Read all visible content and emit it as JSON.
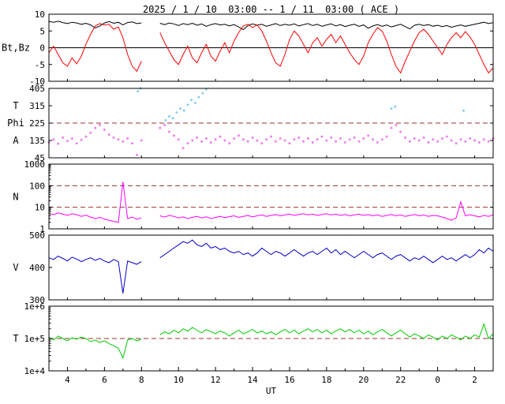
{
  "title": "2025 / 1 / 10  03:00 -- 1 / 11  03:00 ( ACE )",
  "chart_data": {
    "type": "line",
    "title": "2025 / 1 / 10  03:00 -- 1 / 11  03:00 ( ACE )",
    "source": "ACE",
    "x": {
      "label": "UT",
      "min": 3,
      "max": 27,
      "start": 3,
      "step": 0.25,
      "tick_values": [
        4,
        6,
        8,
        10,
        12,
        14,
        16,
        18,
        20,
        22,
        24,
        26
      ],
      "tick_labels": [
        "4",
        "6",
        "8",
        "10",
        "12",
        "14",
        "16",
        "18",
        "20",
        "22",
        "0",
        "2"
      ]
    },
    "panels": [
      {
        "id": "bt-bz",
        "scale": "linear",
        "ylim": [
          -10,
          10
        ],
        "yticks": [
          {
            "v": -10,
            "l": "-10"
          },
          {
            "v": -5,
            "l": "-5"
          },
          {
            "v": 0,
            "l": "0"
          },
          {
            "v": 5,
            "l": "5"
          },
          {
            "v": 10,
            "l": "10"
          }
        ],
        "ylabels": [
          {
            "text": "Bt,Bz",
            "at": 0
          }
        ],
        "ref_lines": [
          {
            "v": 0,
            "style": "solid",
            "color": "#000000"
          }
        ],
        "series": [
          {
            "name": "Bt",
            "type": "line",
            "color": "#000000",
            "values": [
              7.8,
              7.6,
              7.9,
              7.5,
              7.2,
              7.6,
              7.4,
              7.0,
              7.3,
              6.8,
              5.9,
              6.5,
              7.4,
              7.8,
              7.3,
              7.6,
              6.8,
              7.5,
              7.7,
              7.2,
              7.4,
              null,
              null,
              null,
              7.3,
              6.9,
              7.4,
              7.1,
              6.6,
              7.2,
              6.9,
              7.3,
              6.7,
              7.1,
              6.4,
              6.9,
              7.2,
              6.8,
              7.0,
              6.5,
              6.9,
              6.2,
              5.4,
              6.6,
              7.1,
              6.7,
              7.0,
              6.4,
              6.8,
              7.2,
              6.6,
              7.0,
              6.7,
              7.1,
              6.5,
              6.9,
              7.2,
              6.6,
              7.0,
              6.4,
              6.8,
              7.1,
              6.5,
              6.9,
              6.3,
              6.7,
              7.0,
              6.4,
              6.8,
              5.8,
              6.5,
              6.9,
              6.4,
              6.8,
              6.2,
              6.6,
              7.0,
              6.3,
              5.6,
              6.7,
              7.0,
              6.6,
              6.9,
              6.4,
              6.7,
              6.3,
              6.6,
              6.1,
              6.5,
              6.8,
              6.4,
              6.7,
              7.0,
              7.3,
              7.6,
              7.2,
              7.5
            ]
          },
          {
            "name": "Bz",
            "type": "line",
            "color": "#ff0000",
            "values": [
              -1.5,
              0.5,
              -2.0,
              -4.5,
              -5.5,
              -3.0,
              -4.8,
              -2.5,
              1.0,
              4.0,
              6.5,
              7.2,
              6.8,
              7.0,
              5.5,
              6.2,
              3.0,
              -2.0,
              -5.5,
              -7.0,
              -4.0,
              null,
              null,
              null,
              4.5,
              1.5,
              -1.0,
              -3.5,
              -5.0,
              -2.0,
              0.5,
              -3.0,
              -4.5,
              -1.5,
              1.0,
              -2.5,
              -4.0,
              -1.0,
              1.5,
              -1.5,
              2.0,
              4.5,
              6.5,
              7.0,
              6.0,
              6.8,
              5.0,
              2.0,
              -1.5,
              -4.5,
              -5.5,
              -2.0,
              2.5,
              5.0,
              3.5,
              1.0,
              -1.5,
              1.5,
              3.0,
              0.5,
              2.5,
              4.0,
              1.5,
              3.5,
              1.0,
              -1.5,
              -3.5,
              -5.0,
              -2.5,
              1.5,
              4.0,
              6.0,
              5.0,
              2.0,
              -2.0,
              -5.5,
              -7.5,
              -4.0,
              -1.0,
              2.0,
              4.5,
              5.5,
              4.0,
              2.0,
              0.0,
              -2.0,
              1.0,
              3.0,
              4.5,
              3.0,
              4.8,
              3.2,
              1.0,
              -2.0,
              -5.0,
              -7.5,
              -6.0
            ]
          }
        ]
      },
      {
        "id": "phi",
        "scale": "linear",
        "ylim": [
          45,
          405
        ],
        "yticks": [
          {
            "v": 45,
            "l": "45"
          },
          {
            "v": 135,
            "l": "135"
          },
          {
            "v": 225,
            "l": "225"
          },
          {
            "v": 315,
            "l": "315"
          },
          {
            "v": 405,
            "l": "405"
          }
        ],
        "ylabels": [
          {
            "text": "T",
            "at": 315
          },
          {
            "text": "Phi",
            "at": 225
          },
          {
            "text": "A",
            "at": 135
          }
        ],
        "ref_lines": [
          {
            "v": 225,
            "style": "dashed",
            "color": "#993333"
          }
        ],
        "series": [
          {
            "name": "Phi",
            "type": "scatter",
            "color": "#ee82ee",
            "values": [
              125,
              140,
              118,
              150,
              132,
              145,
              120,
              138,
              155,
              175,
              200,
              215,
              190,
              165,
              150,
              140,
              130,
              145,
              120,
              60,
              135,
              null,
              null,
              null,
              200,
              215,
              180,
              160,
              140,
              95,
              120,
              135,
              150,
              130,
              145,
              125,
              140,
              155,
              135,
              120,
              145,
              160,
              140,
              130,
              150,
              135,
              120,
              140,
              155,
              130,
              145,
              135,
              120,
              140,
              150,
              130,
              145,
              125,
              140,
              155,
              135,
              150,
              130,
              145,
              125,
              140,
              150,
              130,
              145,
              160,
              140,
              125,
              140,
              155,
              200,
              215,
              180,
              150,
              130,
              145,
              135,
              150,
              125,
              140,
              130,
              145,
              155,
              135,
              120,
              140,
              130,
              145,
              135,
              125,
              140,
              130,
              145
            ]
          },
          {
            "name": "Phi-hot",
            "type": "scatter",
            "color": "#87ceeb",
            "points": [
              [
                7.8,
                390
              ],
              [
                7.95,
                405
              ],
              [
                9.3,
                240
              ],
              [
                9.5,
                260
              ],
              [
                9.7,
                250
              ],
              [
                9.9,
                280
              ],
              [
                10.1,
                300
              ],
              [
                10.3,
                290
              ],
              [
                10.5,
                320
              ],
              [
                10.7,
                345
              ],
              [
                10.9,
                330
              ],
              [
                11.1,
                360
              ],
              [
                11.3,
                380
              ],
              [
                11.5,
                400
              ],
              [
                21.5,
                300
              ],
              [
                21.7,
                310
              ],
              [
                25.4,
                290
              ]
            ]
          }
        ]
      },
      {
        "id": "n",
        "scale": "log",
        "ylim": [
          1,
          1000
        ],
        "yticks": [
          {
            "v": 1,
            "l": "1"
          },
          {
            "v": 10,
            "l": "10"
          },
          {
            "v": 100,
            "l": "100"
          },
          {
            "v": 1000,
            "l": "1000"
          }
        ],
        "ylabels": [
          {
            "text": "N",
            "at": 30
          }
        ],
        "ref_lines": [
          {
            "v": 10,
            "style": "dashed",
            "color": "#993333"
          },
          {
            "v": 100,
            "style": "dashed",
            "color": "#993333"
          }
        ],
        "series": [
          {
            "name": "N",
            "type": "line",
            "color": "#ff00ff",
            "values": [
              5.0,
              4.5,
              5.5,
              4.8,
              4.2,
              5.0,
              4.5,
              3.8,
              4.3,
              3.5,
              3.0,
              3.4,
              2.8,
              2.5,
              2.2,
              2.0,
              150,
              3.0,
              3.5,
              2.8,
              3.2,
              null,
              null,
              null,
              4.0,
              3.5,
              4.2,
              3.8,
              3.2,
              3.6,
              3.0,
              3.4,
              3.8,
              3.2,
              3.6,
              3.0,
              3.4,
              3.8,
              3.3,
              3.7,
              4.0,
              3.4,
              3.8,
              4.2,
              3.6,
              4.0,
              4.4,
              3.8,
              4.2,
              4.6,
              4.0,
              4.4,
              4.8,
              4.2,
              4.6,
              5.0,
              4.4,
              4.8,
              4.2,
              4.6,
              5.0,
              4.4,
              4.8,
              4.2,
              4.6,
              4.0,
              4.4,
              4.8,
              4.2,
              4.6,
              4.0,
              4.4,
              3.8,
              4.2,
              4.6,
              4.0,
              4.4,
              3.8,
              4.2,
              4.6,
              4.0,
              4.4,
              3.8,
              4.2,
              4.0,
              3.5,
              3.0,
              2.5,
              3.2,
              18,
              4.0,
              4.5,
              4.0,
              3.6,
              4.2,
              3.8,
              4.4
            ]
          }
        ]
      },
      {
        "id": "v",
        "scale": "linear",
        "ylim": [
          300,
          500
        ],
        "yticks": [
          {
            "v": 300,
            "l": "300"
          },
          {
            "v": 400,
            "l": "400"
          },
          {
            "v": 500,
            "l": "500"
          }
        ],
        "ylabels": [
          {
            "text": "V",
            "at": 400
          }
        ],
        "ref_lines": [],
        "series": [
          {
            "name": "V",
            "type": "line",
            "color": "#0000cc",
            "values": [
              430,
              425,
              435,
              428,
              420,
              432,
              426,
              418,
              425,
              430,
              422,
              428,
              420,
              415,
              425,
              418,
              320,
              420,
              415,
              410,
              418,
              null,
              null,
              null,
              430,
              440,
              450,
              460,
              470,
              480,
              475,
              485,
              470,
              465,
              475,
              460,
              465,
              455,
              460,
              450,
              445,
              450,
              440,
              445,
              435,
              445,
              460,
              450,
              440,
              450,
              445,
              435,
              445,
              455,
              445,
              435,
              445,
              450,
              440,
              450,
              460,
              445,
              455,
              440,
              450,
              440,
              430,
              440,
              450,
              440,
              430,
              440,
              445,
              435,
              425,
              435,
              440,
              430,
              420,
              430,
              425,
              435,
              425,
              415,
              425,
              435,
              425,
              430,
              420,
              430,
              440,
              430,
              440,
              455,
              445,
              460,
              450
            ]
          }
        ]
      },
      {
        "id": "t",
        "scale": "log",
        "ylim": [
          10000,
          1000000
        ],
        "yticks": [
          {
            "v": 10000,
            "l": "1e+4"
          },
          {
            "v": 100000,
            "l": "1e+5"
          },
          {
            "v": 1000000,
            "l": "1e+6"
          }
        ],
        "ylabels": [
          {
            "text": "T",
            "at": 100000
          }
        ],
        "ref_lines": [
          {
            "v": 100000,
            "style": "dashed",
            "color": "#993333"
          }
        ],
        "series": [
          {
            "name": "T",
            "type": "line",
            "color": "#00cc00",
            "values": [
              110000,
              90000,
              120000,
              100000,
              85000,
              105000,
              95000,
              110000,
              100000,
              80000,
              90000,
              75000,
              85000,
              70000,
              60000,
              50000,
              25000,
              90000,
              100000,
              85000,
              95000,
              null,
              null,
              null,
              130000,
              160000,
              140000,
              180000,
              150000,
              200000,
              170000,
              220000,
              180000,
              150000,
              190000,
              160000,
              140000,
              170000,
              150000,
              120000,
              150000,
              180000,
              140000,
              160000,
              190000,
              150000,
              170000,
              140000,
              160000,
              130000,
              160000,
              190000,
              150000,
              180000,
              140000,
              170000,
              200000,
              160000,
              190000,
              150000,
              180000,
              140000,
              170000,
              200000,
              160000,
              190000,
              150000,
              180000,
              140000,
              170000,
              130000,
              160000,
              190000,
              150000,
              120000,
              150000,
              180000,
              140000,
              110000,
              140000,
              120000,
              100000,
              130000,
              110000,
              90000,
              120000,
              100000,
              130000,
              110000,
              90000,
              120000,
              100000,
              130000,
              110000,
              280000,
              100000,
              140000
            ]
          }
        ]
      }
    ]
  }
}
